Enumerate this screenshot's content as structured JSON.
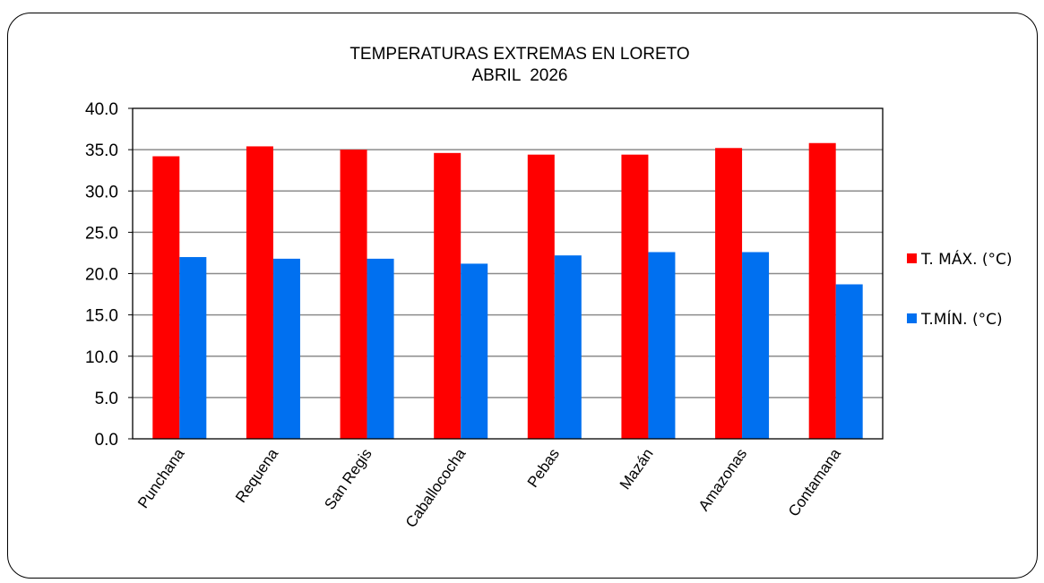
{
  "chart_data": {
    "type": "bar",
    "title": "TEMPERATURAS EXTREMAS EN LORETO",
    "subtitle": "ABRIL  2026",
    "categories": [
      "Punchana",
      "Requena",
      "San Regis",
      "Caballococha",
      "Pebas",
      "Mazán",
      "Amazonas",
      "Contamana"
    ],
    "series": [
      {
        "name": "T. MÁX. (°C)",
        "color": "#ff0000",
        "values": [
          34.2,
          35.4,
          35.0,
          34.6,
          34.4,
          34.4,
          35.2,
          35.8
        ]
      },
      {
        "name": "T.MÍN.  (°C)",
        "color": "#0070f0",
        "values": [
          22.0,
          21.8,
          21.8,
          21.2,
          22.2,
          22.6,
          22.6,
          18.7
        ]
      }
    ],
    "ylim": [
      0,
      40
    ],
    "yticks": [
      "0.0",
      "5.0",
      "10.0",
      "15.0",
      "20.0",
      "25.0",
      "30.0",
      "35.0",
      "40.0"
    ],
    "grid": true,
    "legend_position": "right",
    "xlabel": "",
    "ylabel": ""
  }
}
